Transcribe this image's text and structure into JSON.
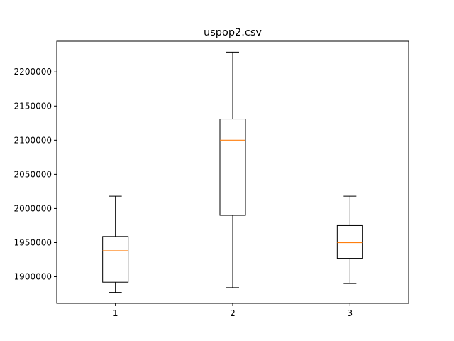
{
  "chart_data": {
    "type": "boxplot",
    "title": "uspop2.csv",
    "xlabel": "",
    "ylabel": "",
    "categories": [
      "1",
      "2",
      "3"
    ],
    "boxes": [
      {
        "category": "1",
        "whisker_low": 1877000,
        "q1": 1892000,
        "median": 1938000,
        "q3": 1959000,
        "whisker_high": 2018000
      },
      {
        "category": "2",
        "whisker_low": 1884000,
        "q1": 1990000,
        "median": 2100000,
        "q3": 2131000,
        "whisker_high": 2229000
      },
      {
        "category": "3",
        "whisker_low": 1890000,
        "q1": 1927000,
        "median": 1950000,
        "q3": 1975000,
        "whisker_high": 2018000
      }
    ],
    "ylim": [
      1861000,
      2245000
    ],
    "xlim": [
      0.5,
      3.5
    ],
    "yticks": [
      1900000,
      1950000,
      2000000,
      2050000,
      2100000,
      2150000,
      2200000
    ],
    "ytick_labels": [
      "1900000",
      "1950000",
      "2000000",
      "2050000",
      "2100000",
      "2150000",
      "2200000"
    ],
    "grid": false,
    "colors": {
      "box": "#000000",
      "median": "#ff7f0e",
      "axes": "#000000",
      "background": "#ffffff"
    }
  }
}
